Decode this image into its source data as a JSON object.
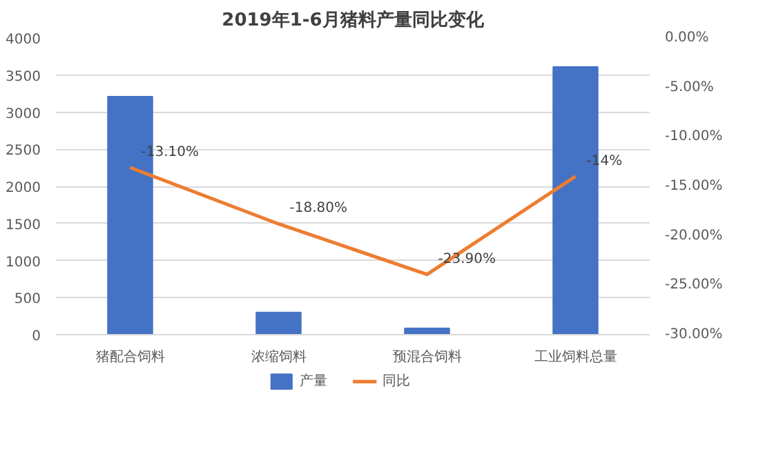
{
  "chart_data": {
    "type": "bar",
    "title": "2019年1-6月猪料产量同比变化",
    "categories": [
      "猪配合饲料",
      "浓缩饲料",
      "预混合饲料",
      "工业饲料总量"
    ],
    "series": [
      {
        "name": "产量",
        "color": "#4472c4",
        "values": [
          3210,
          300,
          85,
          3610
        ]
      },
      {
        "name": "同比",
        "type": "line",
        "axis": "y2",
        "color": "#ed7d31",
        "values": [
          -13.1,
          -18.8,
          -23.9,
          -14
        ],
        "value_labels": [
          "-13.10%",
          "-18.80%",
          "-23.90%",
          "-14%"
        ]
      }
    ],
    "ylim": [
      0,
      4000
    ],
    "yticks": [
      0,
      500,
      1000,
      1500,
      2000,
      2500,
      3000,
      3500,
      4000
    ],
    "y2lim": [
      -30,
      0
    ],
    "y2ticks": [
      {
        "value": -30,
        "label": "-30.00%"
      },
      {
        "value": -25,
        "label": "-25.00%"
      },
      {
        "value": -20,
        "label": "-20.00%"
      },
      {
        "value": -15,
        "label": "-15.00%"
      },
      {
        "value": -10,
        "label": "-10.00%"
      },
      {
        "value": -5,
        "label": "-5.00%"
      },
      {
        "value": 0,
        "label": "0.00%"
      }
    ],
    "grid": "y",
    "legend": "bottom"
  }
}
